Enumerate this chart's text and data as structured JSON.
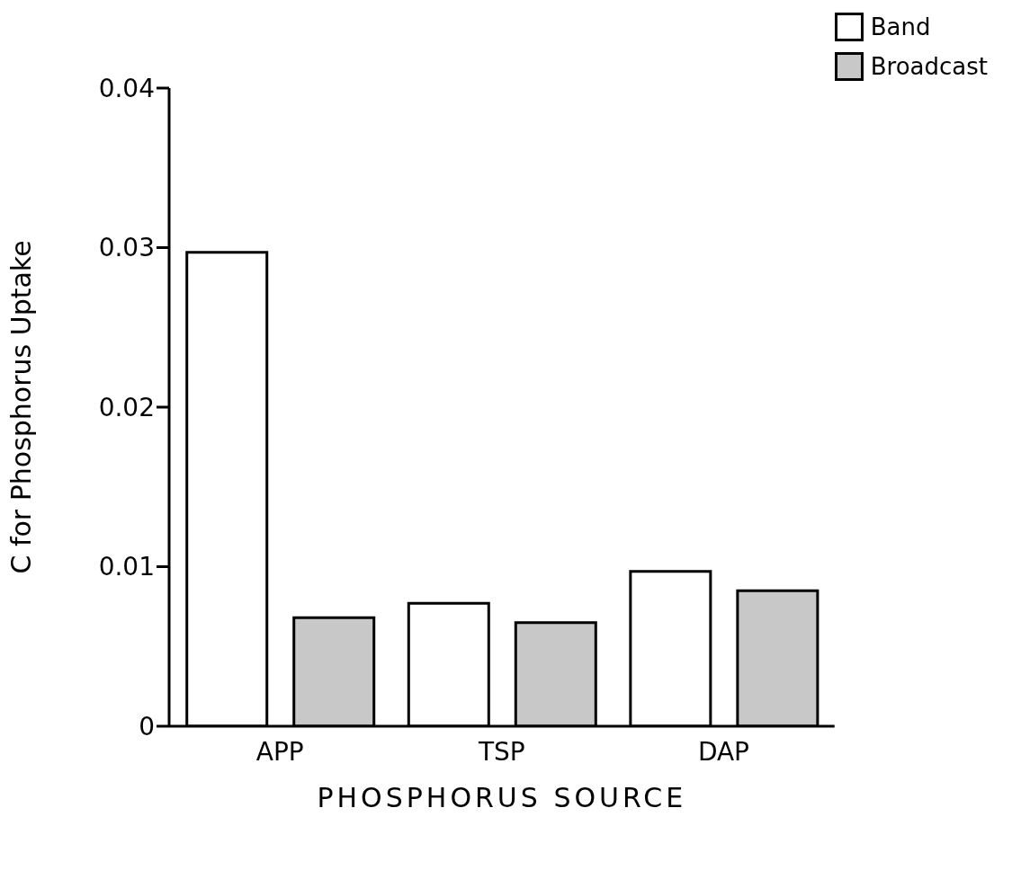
{
  "chart_data": {
    "type": "bar",
    "xlabel": "PHOSPHORUS SOURCE",
    "ylabel": "C̄ for Phosphorus Uptake",
    "categories": [
      "APP",
      "TSP",
      "DAP"
    ],
    "series": [
      {
        "name": "Band",
        "color": "#ffffff",
        "values": [
          0.0297,
          0.0077,
          0.0097
        ]
      },
      {
        "name": "Broadcast",
        "color": "#c8c8c8",
        "values": [
          0.0068,
          0.0065,
          0.0085
        ]
      }
    ],
    "ylim": [
      0,
      0.04
    ],
    "yticks": [
      0,
      0.01,
      0.02,
      0.03,
      0.04
    ],
    "legend": "top right"
  }
}
